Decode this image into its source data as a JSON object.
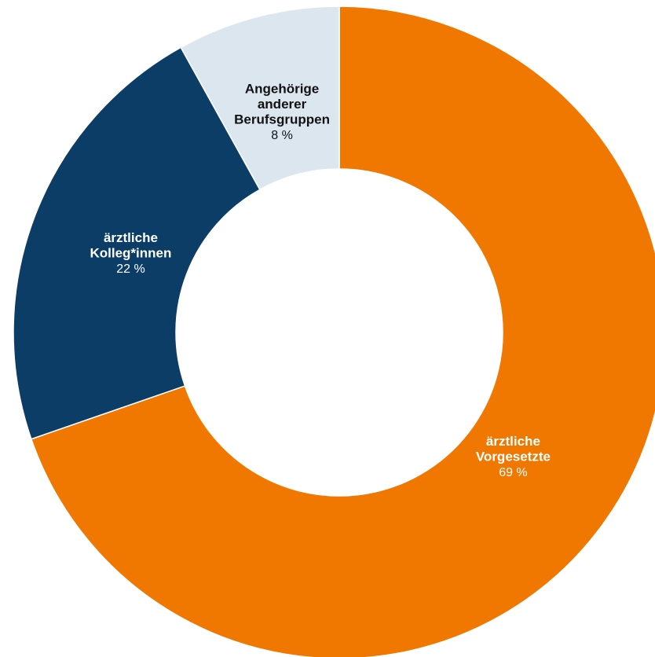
{
  "chart_data": {
    "type": "pie",
    "donut": true,
    "categories": [
      "ärztliche Vorgesetzte",
      "ärztliche Kolleg*innen",
      "Angehörige anderer Berufsgruppen"
    ],
    "values": [
      69,
      22,
      8
    ],
    "label_lines": [
      [
        "ärztliche",
        "Vorgesetzte"
      ],
      [
        "ärztliche",
        "Kolleg*innen"
      ],
      [
        "Angehörige",
        "anderer",
        "Berufsgruppen"
      ]
    ],
    "value_labels": [
      "69 %",
      "22 %",
      "8 %"
    ],
    "colors": [
      "#f07800",
      "#0b3d66",
      "#dce6ef"
    ],
    "label_colors": [
      "#ffffff",
      "#ffffff",
      "#111111"
    ],
    "legend": "none",
    "title": ""
  }
}
